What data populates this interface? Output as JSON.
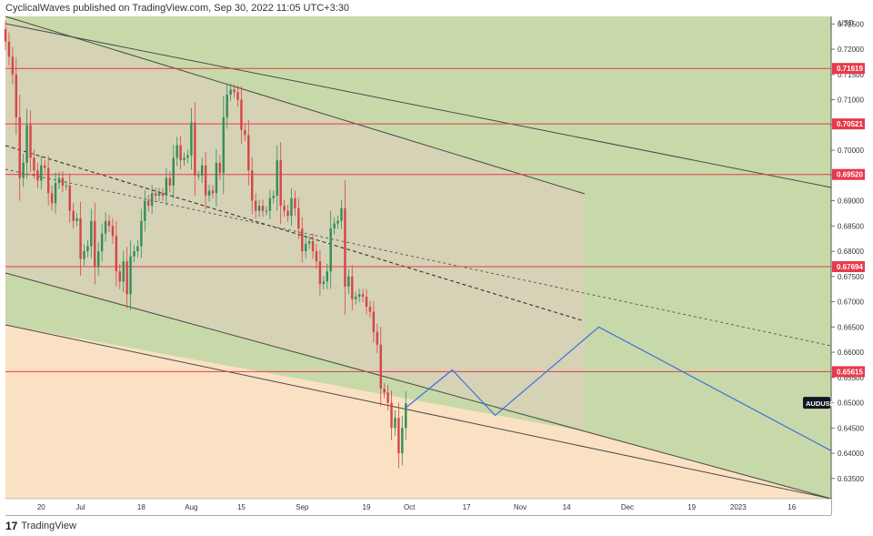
{
  "header": {
    "text": "CyclicalWaves published on TradingView.com, Sep 30, 2022 11:05 UTC+3:30"
  },
  "footer": {
    "logo": "17",
    "brand": "TradingView"
  },
  "colors": {
    "background": "#fbe1c3",
    "zone_fill": "#d6d2b6",
    "channel_fill": "#c5d8a8",
    "resistance": "#e8394b",
    "projection": "#3d6fe0",
    "candle_up": "#2f8f5a",
    "candle_down": "#d64545",
    "price_tag_bg": "#e8394b",
    "symbol_tag_bg": "#131722"
  },
  "chart_data": {
    "type": "candlestick",
    "symbol": "AUDUSD",
    "currency_label": "USD",
    "y_ticks": [
      "0.72500",
      "0.72000",
      "0.71500",
      "0.71000",
      "0.70500",
      "0.70000",
      "0.69500",
      "0.69000",
      "0.68500",
      "0.68000",
      "0.67500",
      "0.67000",
      "0.66500",
      "0.66000",
      "0.65500",
      "0.65000",
      "0.64500",
      "0.64000",
      "0.63500"
    ],
    "ylim": [
      0.631,
      0.7265
    ],
    "x_ticks": [
      "20",
      "Jul",
      "18",
      "Aug",
      "15",
      "Sep",
      "19",
      "Oct",
      "17",
      "Nov",
      "14",
      "Dec",
      "19",
      "2023",
      "16"
    ],
    "x_range": [
      "2022-06-10",
      "2023-01-27"
    ],
    "horizontal_levels": [
      {
        "value": 0.71619,
        "label": "0.71619"
      },
      {
        "value": 0.70521,
        "label": "0.70521"
      },
      {
        "value": 0.6952,
        "label": "0.69520"
      },
      {
        "value": 0.67694,
        "label": "0.67694"
      },
      {
        "value": 0.65615,
        "label": "0.65615"
      }
    ],
    "last_price_label": "AUDUSD",
    "last_price": 0.6499,
    "closes": [
      {
        "date": "2022-06-10",
        "close": 0.7215
      },
      {
        "date": "2022-06-11",
        "close": 0.7185
      },
      {
        "date": "2022-06-12",
        "close": 0.715
      },
      {
        "date": "2022-06-13",
        "close": 0.7065
      },
      {
        "date": "2022-06-14",
        "close": 0.6945
      },
      {
        "date": "2022-06-15",
        "close": 0.6975
      },
      {
        "date": "2022-06-16",
        "close": 0.705
      },
      {
        "date": "2022-06-17",
        "close": 0.6985
      },
      {
        "date": "2022-06-18",
        "close": 0.696
      },
      {
        "date": "2022-06-19",
        "close": 0.694
      },
      {
        "date": "2022-06-20",
        "close": 0.697
      },
      {
        "date": "2022-06-21",
        "close": 0.6965
      },
      {
        "date": "2022-06-22",
        "close": 0.6915
      },
      {
        "date": "2022-06-23",
        "close": 0.6895
      },
      {
        "date": "2022-06-24",
        "close": 0.6935
      },
      {
        "date": "2022-06-25",
        "close": 0.6945
      },
      {
        "date": "2022-06-26",
        "close": 0.693
      },
      {
        "date": "2022-06-27",
        "close": 0.693
      },
      {
        "date": "2022-06-28",
        "close": 0.688
      },
      {
        "date": "2022-06-29",
        "close": 0.686
      },
      {
        "date": "2022-06-30",
        "close": 0.6865
      },
      {
        "date": "2022-07-01",
        "close": 0.6785
      },
      {
        "date": "2022-07-02",
        "close": 0.68
      },
      {
        "date": "2022-07-03",
        "close": 0.681
      },
      {
        "date": "2022-07-04",
        "close": 0.686
      },
      {
        "date": "2022-07-05",
        "close": 0.677
      },
      {
        "date": "2022-07-06",
        "close": 0.68
      },
      {
        "date": "2022-07-07",
        "close": 0.6835
      },
      {
        "date": "2022-07-08",
        "close": 0.686
      },
      {
        "date": "2022-07-09",
        "close": 0.685
      },
      {
        "date": "2022-07-10",
        "close": 0.683
      },
      {
        "date": "2022-07-11",
        "close": 0.676
      },
      {
        "date": "2022-07-12",
        "close": 0.674
      },
      {
        "date": "2022-07-13",
        "close": 0.678
      },
      {
        "date": "2022-07-14",
        "close": 0.6715
      },
      {
        "date": "2022-07-15",
        "close": 0.679
      },
      {
        "date": "2022-07-16",
        "close": 0.68
      },
      {
        "date": "2022-07-17",
        "close": 0.681
      },
      {
        "date": "2022-07-18",
        "close": 0.686
      },
      {
        "date": "2022-07-19",
        "close": 0.69
      },
      {
        "date": "2022-07-20",
        "close": 0.689
      },
      {
        "date": "2022-07-21",
        "close": 0.6915
      },
      {
        "date": "2022-07-22",
        "close": 0.691
      },
      {
        "date": "2022-07-23",
        "close": 0.6915
      },
      {
        "date": "2022-07-24",
        "close": 0.691
      },
      {
        "date": "2022-07-25",
        "close": 0.6945
      },
      {
        "date": "2022-07-26",
        "close": 0.693
      },
      {
        "date": "2022-07-27",
        "close": 0.6985
      },
      {
        "date": "2022-07-28",
        "close": 0.701
      },
      {
        "date": "2022-07-29",
        "close": 0.698
      },
      {
        "date": "2022-07-30",
        "close": 0.6985
      },
      {
        "date": "2022-07-31",
        "close": 0.699
      },
      {
        "date": "2022-08-01",
        "close": 0.7055
      },
      {
        "date": "2022-08-02",
        "close": 0.695
      },
      {
        "date": "2022-08-03",
        "close": 0.695
      },
      {
        "date": "2022-08-04",
        "close": 0.697
      },
      {
        "date": "2022-08-05",
        "close": 0.691
      },
      {
        "date": "2022-08-06",
        "close": 0.692
      },
      {
        "date": "2022-08-07",
        "close": 0.6915
      },
      {
        "date": "2022-08-08",
        "close": 0.6975
      },
      {
        "date": "2022-08-09",
        "close": 0.6955
      },
      {
        "date": "2022-08-10",
        "close": 0.7065
      },
      {
        "date": "2022-08-11",
        "close": 0.711
      },
      {
        "date": "2022-08-12",
        "close": 0.712
      },
      {
        "date": "2022-08-13",
        "close": 0.7115
      },
      {
        "date": "2022-08-14",
        "close": 0.71
      },
      {
        "date": "2022-08-15",
        "close": 0.704
      },
      {
        "date": "2022-08-16",
        "close": 0.703
      },
      {
        "date": "2022-08-17",
        "close": 0.696
      },
      {
        "date": "2022-08-18",
        "close": 0.69
      },
      {
        "date": "2022-08-19",
        "close": 0.688
      },
      {
        "date": "2022-08-20",
        "close": 0.689
      },
      {
        "date": "2022-08-21",
        "close": 0.688
      },
      {
        "date": "2022-08-22",
        "close": 0.688
      },
      {
        "date": "2022-08-23",
        "close": 0.6905
      },
      {
        "date": "2022-08-24",
        "close": 0.691
      },
      {
        "date": "2022-08-25",
        "close": 0.698
      },
      {
        "date": "2022-08-26",
        "close": 0.689
      },
      {
        "date": "2022-08-27",
        "close": 0.688
      },
      {
        "date": "2022-08-28",
        "close": 0.687
      },
      {
        "date": "2022-08-29",
        "close": 0.6905
      },
      {
        "date": "2022-08-30",
        "close": 0.6885
      },
      {
        "date": "2022-08-31",
        "close": 0.6845
      },
      {
        "date": "2022-09-01",
        "close": 0.68
      },
      {
        "date": "2022-09-02",
        "close": 0.6815
      },
      {
        "date": "2022-09-03",
        "close": 0.682
      },
      {
        "date": "2022-09-04",
        "close": 0.68
      },
      {
        "date": "2022-09-05",
        "close": 0.678
      },
      {
        "date": "2022-09-06",
        "close": 0.6735
      },
      {
        "date": "2022-09-07",
        "close": 0.674
      },
      {
        "date": "2022-09-08",
        "close": 0.676
      },
      {
        "date": "2022-09-09",
        "close": 0.6845
      },
      {
        "date": "2022-09-10",
        "close": 0.6855
      },
      {
        "date": "2022-09-11",
        "close": 0.686
      },
      {
        "date": "2022-09-12",
        "close": 0.6885
      },
      {
        "date": "2022-09-13",
        "close": 0.673
      },
      {
        "date": "2022-09-14",
        "close": 0.675
      },
      {
        "date": "2022-09-15",
        "close": 0.6705
      },
      {
        "date": "2022-09-16",
        "close": 0.671
      },
      {
        "date": "2022-09-17",
        "close": 0.6715
      },
      {
        "date": "2022-09-18",
        "close": 0.671
      },
      {
        "date": "2022-09-19",
        "close": 0.669
      },
      {
        "date": "2022-09-20",
        "close": 0.668
      },
      {
        "date": "2022-09-21",
        "close": 0.664
      },
      {
        "date": "2022-09-22",
        "close": 0.6615
      },
      {
        "date": "2022-09-23",
        "close": 0.6528
      },
      {
        "date": "2022-09-24",
        "close": 0.652
      },
      {
        "date": "2022-09-25",
        "close": 0.65
      },
      {
        "date": "2022-09-26",
        "close": 0.645
      },
      {
        "date": "2022-09-27",
        "close": 0.647
      },
      {
        "date": "2022-09-28",
        "close": 0.64
      },
      {
        "date": "2022-09-29",
        "close": 0.645
      },
      {
        "date": "2022-09-30",
        "close": 0.6499
      }
    ],
    "projection_path": [
      {
        "date": "2022-09-30",
        "value": 0.649
      },
      {
        "date": "2022-10-13",
        "value": 0.6565
      },
      {
        "date": "2022-10-25",
        "value": 0.6475
      },
      {
        "date": "2022-11-23",
        "value": 0.665
      },
      {
        "date": "2023-01-27",
        "value": 0.6405
      }
    ]
  }
}
